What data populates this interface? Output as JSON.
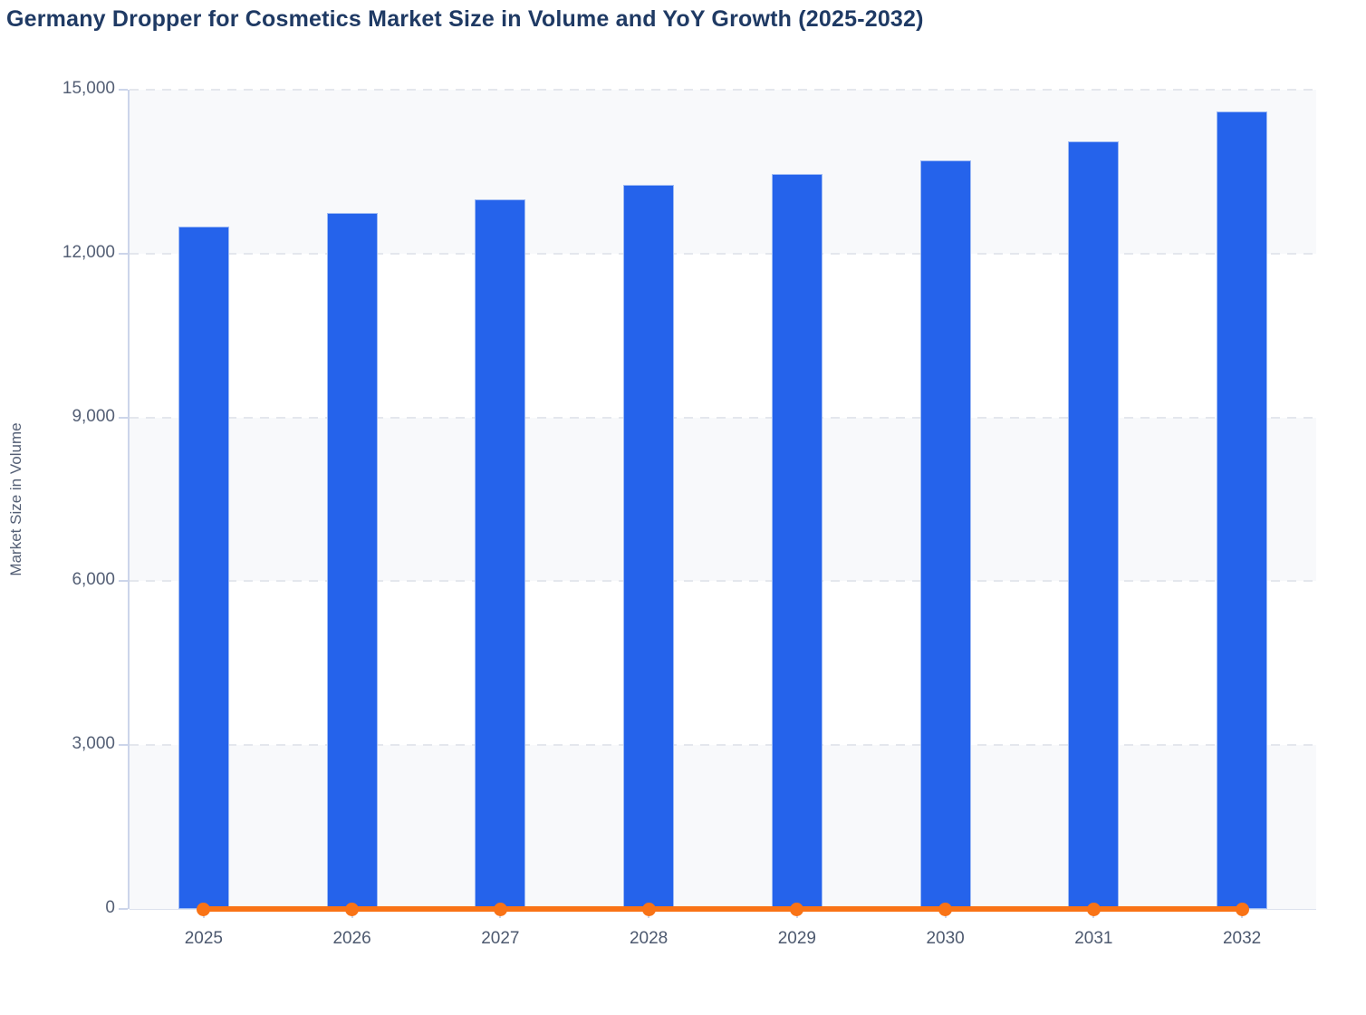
{
  "chart_data": {
    "type": "bar",
    "title": "Germany Dropper for Cosmetics Market Size in Volume and YoY Growth (2025-2032)",
    "ylabel": "Market Size in Volume",
    "xlabel": "",
    "categories": [
      "2025",
      "2026",
      "2027",
      "2028",
      "2029",
      "2030",
      "2031",
      "2032"
    ],
    "series": [
      {
        "name": "Market Size in Volume",
        "type": "bar",
        "values": [
          12500,
          12750,
          13000,
          13250,
          13450,
          13700,
          14050,
          14600
        ]
      },
      {
        "name": "YoY Growth",
        "type": "line",
        "values": [
          0,
          0,
          0,
          0,
          0,
          0,
          0,
          0
        ],
        "note": "rendered flat along the baseline; secondary axis not shown"
      }
    ],
    "ylim": [
      0,
      15000
    ],
    "yticks": [
      0,
      3000,
      6000,
      9000,
      12000,
      15000
    ],
    "ytick_labels": [
      "0",
      "3,000",
      "6,000",
      "9,000",
      "12,000",
      "15,000"
    ],
    "grid": "dashed horizontal gridlines with alternating band fill",
    "legend": "none",
    "colors": {
      "bar": "#2563eb",
      "bar_border": "#9fbbf4",
      "line": "#f97316",
      "marker": "#f97316",
      "band": "#f8f9fb",
      "gridline": "#e4e7ed",
      "axis": "#ccd5ea",
      "title": "#1f3a64",
      "tick_label": "#545f75"
    }
  }
}
